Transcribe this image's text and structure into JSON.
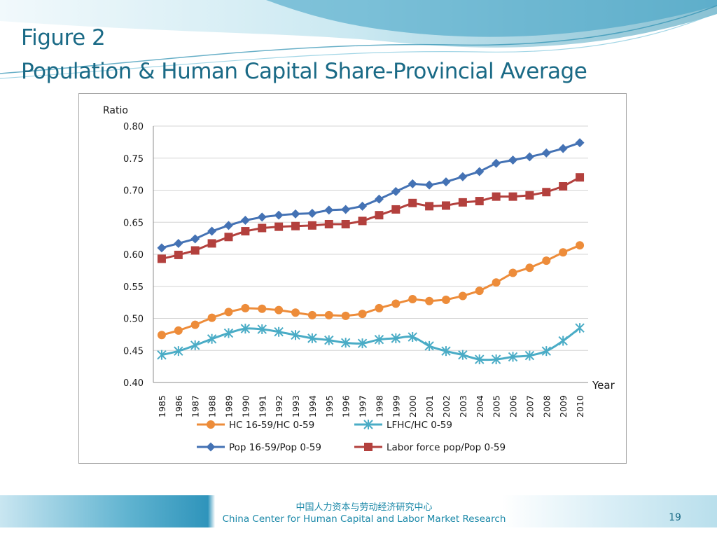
{
  "slide": {
    "title_line1": "Figure 2",
    "title_line2": "Population & Human Capital Share-Provincial Average",
    "footer_cn": "中国人力资本与劳动经济研究中心",
    "footer_en": "China Center for Human Capital and Labor Market Research",
    "page_number": "19",
    "colors": {
      "title": "#1a6a86",
      "footer_text": "#1a88a8",
      "wave_dark": "#2a8fb0",
      "wave_light": "#9fd6e6"
    }
  },
  "chart_data": {
    "type": "line",
    "ylabel": "Ratio",
    "xlabel": "Year",
    "ylim": [
      0.4,
      0.8
    ],
    "ytick_step": 0.05,
    "y_tick_labels": [
      "0.40",
      "0.45",
      "0.50",
      "0.55",
      "0.60",
      "0.65",
      "0.70",
      "0.75",
      "0.80"
    ],
    "grid": "horizontal",
    "legend_position": "bottom",
    "categories": [
      "1985",
      "1986",
      "1987",
      "1988",
      "1989",
      "1990",
      "1991",
      "1992",
      "1993",
      "1994",
      "1995",
      "1996",
      "1997",
      "1998",
      "1999",
      "2000",
      "2001",
      "2002",
      "2003",
      "2004",
      "2005",
      "2006",
      "2007",
      "2008",
      "2009",
      "2010"
    ],
    "series": [
      {
        "name": "HC 16-59/HC 0-59",
        "color": "#ed8c3a",
        "marker": "circle",
        "smooth": false,
        "values": [
          0.474,
          0.481,
          0.49,
          0.501,
          0.51,
          0.516,
          0.515,
          0.513,
          0.509,
          0.505,
          0.505,
          0.504,
          0.507,
          0.516,
          0.523,
          0.53,
          0.527,
          0.529,
          0.535,
          0.543,
          0.556,
          0.571,
          0.579,
          0.59,
          0.603,
          0.614
        ]
      },
      {
        "name": "LFHC/HC 0-59",
        "color": "#4aacc6",
        "marker": "asterisk",
        "smooth": true,
        "values": [
          0.443,
          0.449,
          0.458,
          0.468,
          0.477,
          0.484,
          0.483,
          0.479,
          0.474,
          0.469,
          0.466,
          0.462,
          0.461,
          0.467,
          0.469,
          0.471,
          0.457,
          0.449,
          0.443,
          0.436,
          0.436,
          0.44,
          0.442,
          0.449,
          0.465,
          0.485
        ]
      },
      {
        "name": "Pop 16-59/Pop 0-59",
        "color": "#4472b4",
        "marker": "diamond",
        "smooth": false,
        "values": [
          0.61,
          0.617,
          0.624,
          0.636,
          0.645,
          0.653,
          0.658,
          0.661,
          0.663,
          0.664,
          0.669,
          0.67,
          0.675,
          0.686,
          0.698,
          0.71,
          0.708,
          0.713,
          0.721,
          0.729,
          0.742,
          0.747,
          0.752,
          0.758,
          0.765,
          0.774
        ]
      },
      {
        "name": "Labor force pop/Pop 0-59",
        "color": "#b3403d",
        "marker": "square",
        "smooth": false,
        "values": [
          0.593,
          0.599,
          0.606,
          0.617,
          0.627,
          0.636,
          0.641,
          0.643,
          0.644,
          0.645,
          0.647,
          0.647,
          0.652,
          0.661,
          0.67,
          0.68,
          0.675,
          0.676,
          0.681,
          0.683,
          0.69,
          0.69,
          0.692,
          0.697,
          0.706,
          0.72
        ]
      }
    ]
  }
}
